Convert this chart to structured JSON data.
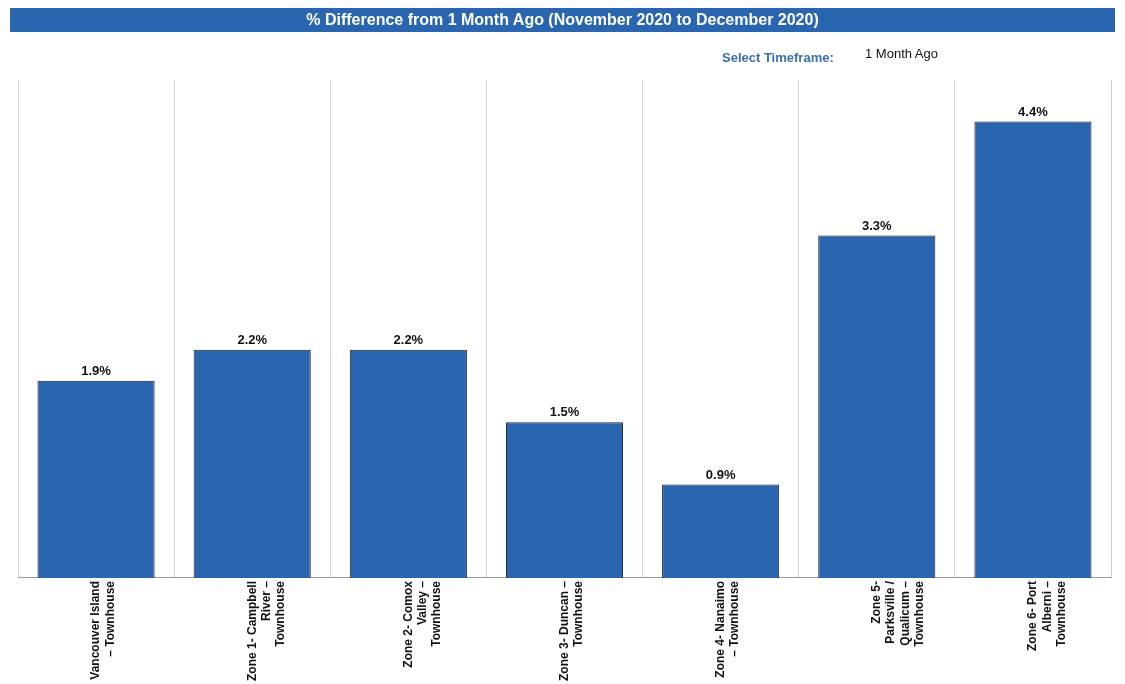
{
  "chart_data": {
    "type": "bar",
    "title": "% Difference from 1 Month Ago (November 2020 to December 2020)",
    "categories": [
      "Vancouver Island – Townhouse",
      "Zone 1- Campbell River – Townhouse",
      "Zone 2- Comox Valley – Townhouse",
      "Zone 3- Duncan – Townhouse",
      "Zone 4- Nanaimo – Townhouse",
      "Zone 5- Parksville / Qualicum – Townhouse",
      "Zone 6- Port Alberni – Townhouse"
    ],
    "values": [
      1.9,
      2.2,
      2.2,
      1.5,
      0.9,
      3.3,
      4.4
    ],
    "color": "#2a66b0",
    "value_labels": [
      "1.9%",
      "2.2%",
      "2.2%",
      "1.5%",
      "0.9%",
      "3.3%",
      "4.4%"
    ],
    "ylim": [
      0,
      4.8
    ],
    "tick_labels": "x",
    "grid": "x",
    "legend": false,
    "annotations": [
      "Select Timeframe:",
      "1 Month Ago"
    ]
  }
}
